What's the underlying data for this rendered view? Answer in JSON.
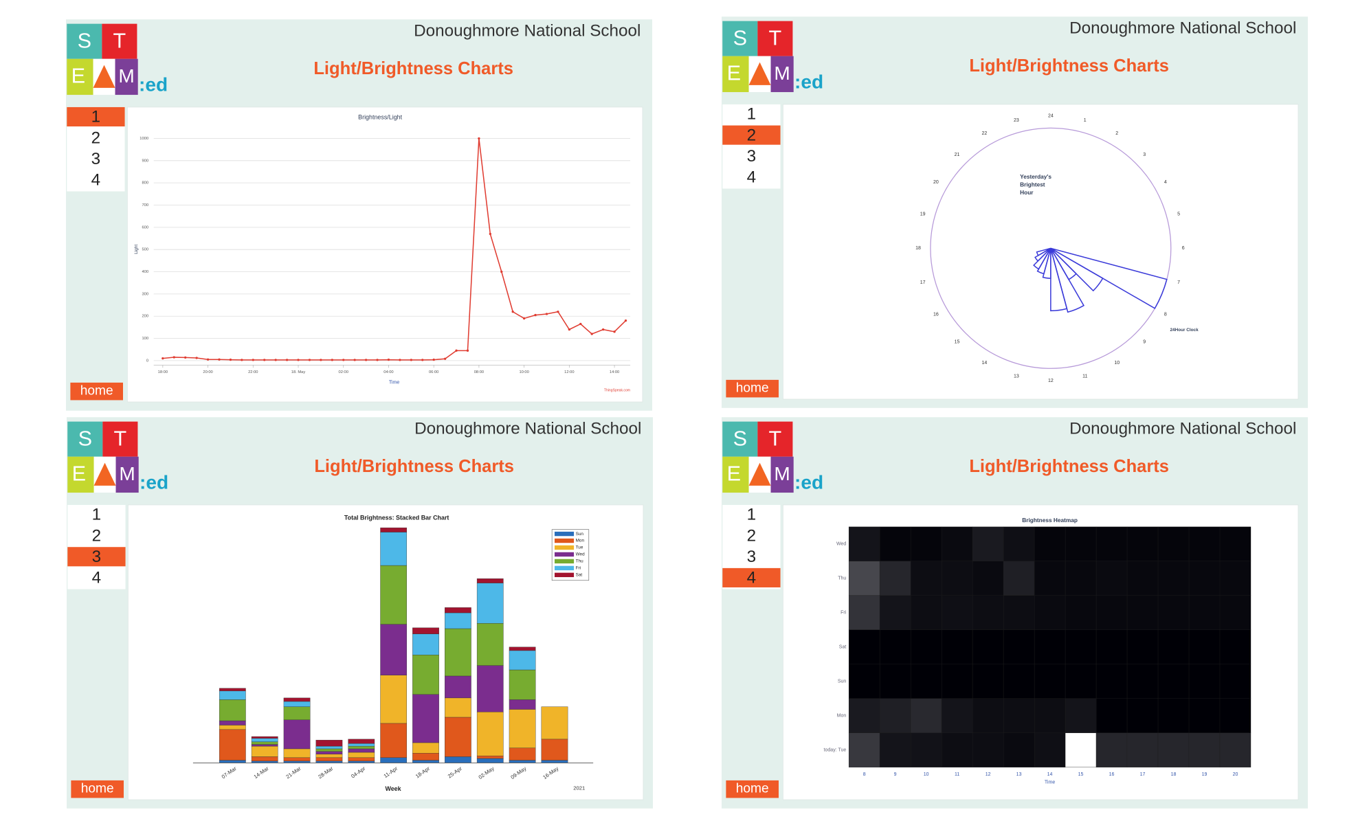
{
  "logo": {
    "s": "S",
    "t": "T",
    "e": "E",
    "m": "M",
    "suffix": ":ed"
  },
  "panels": [
    {
      "school": "Donoughmore National School",
      "title": "Light/Brightness Charts",
      "nav": [
        "1",
        "2",
        "3",
        "4"
      ],
      "home": "home"
    },
    {
      "school": "Donoughmore National School",
      "title": "Light/Brightness Charts",
      "nav": [
        "1",
        "2",
        "3",
        "4"
      ],
      "home": "home"
    },
    {
      "school": "Donoughmore National School",
      "title": "Light/Brightness Charts",
      "nav": [
        "1",
        "2",
        "3",
        "4"
      ],
      "home": "home"
    },
    {
      "school": "Donoughmore National School",
      "title": "Light/Brightness Charts",
      "nav": [
        "1",
        "2",
        "3",
        "4"
      ],
      "home": "home"
    }
  ],
  "chart_data": [
    {
      "type": "line",
      "title": "Brightness/Light",
      "xlabel": "Time",
      "ylabel": "Light",
      "credit": "ThingSpeak.com",
      "color": "#e03c31",
      "x": [
        18,
        18.5,
        19,
        19.5,
        20,
        20.5,
        21,
        21.5,
        22,
        22.5,
        23,
        23.5,
        24,
        24.5,
        25,
        25.5,
        26,
        26.5,
        27,
        27.5,
        28,
        28.5,
        29,
        29.5,
        30,
        30.5,
        31,
        31.5,
        32,
        32.5,
        33,
        33.5,
        34,
        34.5,
        35,
        35.5,
        36,
        36.5,
        37,
        37.5,
        38,
        38.5
      ],
      "y": [
        10,
        15,
        14,
        12,
        5,
        5,
        4,
        3,
        3,
        3,
        3,
        3,
        3,
        3,
        3,
        3,
        3,
        3,
        3,
        3,
        4,
        3,
        3,
        3,
        4,
        8,
        45,
        45,
        1000,
        570,
        400,
        220,
        190,
        205,
        210,
        220,
        140,
        165,
        120,
        140,
        130,
        180
      ],
      "xlim": [
        17.6,
        38.7
      ],
      "ylim": [
        -20,
        1050
      ],
      "xticks": [
        {
          "value": 18,
          "label": "18:00"
        },
        {
          "value": 20,
          "label": "20:00"
        },
        {
          "value": 22,
          "label": "22:00"
        },
        {
          "value": 24,
          "label": "18. May"
        },
        {
          "value": 26,
          "label": "02:00"
        },
        {
          "value": 28,
          "label": "04:00"
        },
        {
          "value": 30,
          "label": "06:00"
        },
        {
          "value": 32,
          "label": "08:00"
        },
        {
          "value": 34,
          "label": "10:00"
        },
        {
          "value": 36,
          "label": "12:00"
        },
        {
          "value": 38,
          "label": "14:00"
        }
      ],
      "yticks": [
        0,
        100,
        200,
        300,
        400,
        500,
        600,
        700,
        800,
        900,
        1000
      ],
      "grid": true
    },
    {
      "type": "polar",
      "title": [
        "Yesterday's",
        "Brightest",
        "Hour"
      ],
      "rlabel": "24Hour Clock",
      "color": "#3b3bd9",
      "circle_color": "#b79ad9",
      "categories": [
        "24",
        "1",
        "2",
        "3",
        "4",
        "5",
        "6",
        "7",
        "8",
        "9",
        "10",
        "11",
        "12",
        "13",
        "14",
        "15",
        "16",
        "17",
        "18",
        "19",
        "20",
        "21",
        "22",
        "23"
      ],
      "values": [
        0,
        0,
        0,
        0,
        0,
        0,
        0,
        100,
        50,
        30,
        55,
        52,
        25,
        22,
        20,
        15,
        12,
        0,
        0,
        0,
        0,
        0,
        0,
        0
      ],
      "rlim": [
        0,
        100
      ]
    },
    {
      "type": "stacked_bar",
      "title": "Total Brightness: Stacked Bar Chart",
      "xlabel": "Week",
      "note": "2021",
      "categories": [
        "07-Mar",
        "14-Mar",
        "21-Mar",
        "28-Mar",
        "04-Apr",
        "11-Apr",
        "18-Apr",
        "25-Apr",
        "02-May",
        "09-May",
        "16-May"
      ],
      "series": [
        {
          "name": "Sun",
          "color": "#2a6ebb",
          "values": [
            3,
            2,
            2,
            2,
            2,
            6,
            3,
            7,
            5,
            3,
            3
          ]
        },
        {
          "name": "Mon",
          "color": "#e0581c",
          "values": [
            35,
            5,
            4,
            4,
            4,
            39,
            8,
            45,
            3,
            14,
            24
          ]
        },
        {
          "name": "Tue",
          "color": "#f0b429",
          "values": [
            5,
            12,
            10,
            4,
            6,
            55,
            12,
            22,
            50,
            44,
            37
          ]
        },
        {
          "name": "Wed",
          "color": "#7b2d8e",
          "values": [
            5,
            2,
            33,
            3,
            4,
            58,
            55,
            25,
            53,
            11,
            0
          ]
        },
        {
          "name": "Thu",
          "color": "#77ac30",
          "values": [
            24,
            3,
            15,
            3,
            3,
            67,
            45,
            54,
            48,
            34,
            0
          ]
        },
        {
          "name": "Fri",
          "color": "#4db8e8",
          "values": [
            10,
            4,
            6,
            3,
            3,
            38,
            24,
            18,
            46,
            22,
            0
          ]
        },
        {
          "name": "Sat",
          "color": "#a2142f",
          "values": [
            3,
            2,
            4,
            7,
            5,
            5,
            7,
            6,
            5,
            4,
            0
          ]
        }
      ],
      "ylim": [
        0,
        280
      ]
    },
    {
      "type": "heatmap",
      "title": "Brightness Heatmap",
      "xlabel": "Time",
      "categories": [
        8,
        9,
        10,
        11,
        12,
        13,
        14,
        15,
        16,
        17,
        18,
        19,
        20
      ],
      "rows": [
        "Wed",
        "Thu",
        "Fri",
        "Sat",
        "Sun",
        "Mon",
        "today: Tue"
      ],
      "values": [
        [
          8,
          2,
          2,
          4,
          10,
          6,
          2,
          2,
          2,
          2,
          2,
          2,
          2
        ],
        [
          28,
          15,
          5,
          5,
          4,
          12,
          3,
          3,
          4,
          3,
          3,
          3,
          3
        ],
        [
          20,
          8,
          5,
          6,
          5,
          5,
          4,
          3,
          3,
          3,
          3,
          3,
          3
        ],
        [
          0,
          0,
          0,
          0,
          0,
          0,
          0,
          0,
          0,
          0,
          0,
          0,
          0
        ],
        [
          0,
          0,
          0,
          0,
          0,
          0,
          0,
          0,
          0,
          0,
          0,
          0,
          0
        ],
        [
          10,
          12,
          16,
          8,
          5,
          5,
          5,
          8,
          0,
          0,
          0,
          0,
          0
        ],
        [
          22,
          8,
          7,
          5,
          5,
          4,
          6,
          100,
          15,
          15,
          15,
          15,
          15
        ]
      ],
      "zlim": [
        0,
        100
      ]
    }
  ]
}
